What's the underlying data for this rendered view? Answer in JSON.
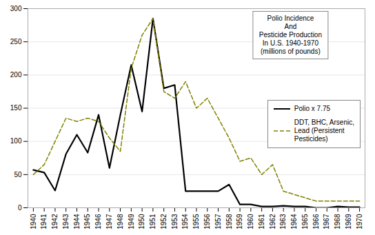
{
  "chart_data": {
    "type": "line",
    "title": "Polio Incidence\nAnd\nPesticide Production\nIn U.S. 1940-1970\n(millions of pounds)",
    "series": [
      {
        "name": "Polio x 7.75",
        "color": "#000000",
        "line_style": "solid",
        "x": [
          1940,
          1941,
          1942,
          1943,
          1944,
          1945,
          1946,
          1947,
          1948,
          1949,
          1950,
          1951,
          1952,
          1953,
          1954,
          1957,
          1958,
          1959,
          1960,
          1961,
          1962,
          1963,
          1964,
          1965,
          1966,
          1967,
          1968,
          1969,
          1970
        ],
        "values": [
          57,
          53,
          26,
          81,
          110,
          83,
          140,
          60,
          140,
          215,
          145,
          285,
          180,
          185,
          25,
          25,
          35,
          5,
          5,
          2,
          2,
          3,
          2,
          2,
          0,
          0,
          2,
          1,
          1
        ]
      },
      {
        "name": "DDT, BHC, Arsenic,\nLead (Persistent\nPesticides)",
        "color": "#808000",
        "line_style": "dashed",
        "x": [
          1940,
          1941,
          1942,
          1943,
          1944,
          1945,
          1946,
          1947,
          1948,
          1949,
          1950,
          1951,
          1952,
          1953,
          1954,
          1955,
          1956,
          1957,
          1958,
          1959,
          1960,
          1961,
          1962,
          1963,
          1964,
          1965,
          1966,
          1967,
          1968,
          1969,
          1970
        ],
        "values": [
          50,
          65,
          100,
          135,
          130,
          135,
          130,
          105,
          85,
          210,
          260,
          285,
          175,
          165,
          190,
          150,
          165,
          135,
          105,
          70,
          75,
          50,
          65,
          25,
          20,
          15,
          10,
          10,
          10,
          10,
          10
        ]
      }
    ],
    "xlim": [
      1939.5,
      1970.5
    ],
    "xticks": [
      1940,
      1941,
      1942,
      1943,
      1944,
      1945,
      1946,
      1947,
      1948,
      1949,
      1950,
      1951,
      1952,
      1953,
      1954,
      1955,
      1956,
      1957,
      1958,
      1959,
      1960,
      1961,
      1962,
      1963,
      1964,
      1965,
      1966,
      1967,
      1968,
      1969,
      1970
    ],
    "ylim": [
      0,
      300
    ],
    "yticks": [
      0,
      50,
      100,
      150,
      200,
      250,
      300
    ],
    "grid": "y",
    "legend": "right"
  }
}
